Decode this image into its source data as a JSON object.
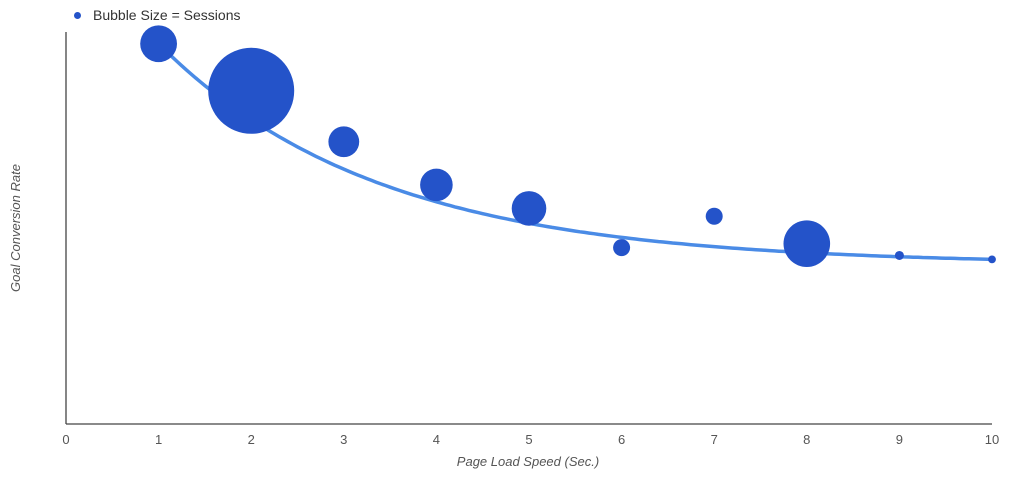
{
  "chart_data": {
    "type": "scatter",
    "subtype": "bubble",
    "legend": {
      "label": "Bubble Size = Sessions",
      "placement": "top-left"
    },
    "xlabel": "Page Load Speed (Sec.)",
    "ylabel": "Goal Conversion Rate",
    "xlim": [
      0,
      10
    ],
    "ylim": [
      0,
      1
    ],
    "x_ticks": [
      "0",
      "1",
      "2",
      "3",
      "4",
      "5",
      "6",
      "7",
      "8",
      "9",
      "10"
    ],
    "y_ticks_shown": false,
    "grid": false,
    "trendline": true,
    "bubble_color": "#2453c9",
    "trend_color": "#4a8be6",
    "axis_color": "#444444",
    "series": [
      {
        "name": "Bubble Size = Sessions",
        "x": [
          1,
          2,
          3,
          4,
          5,
          6,
          7,
          8,
          9,
          10
        ],
        "y": [
          0.97,
          0.85,
          0.72,
          0.61,
          0.55,
          0.45,
          0.53,
          0.46,
          0.43,
          0.42
        ],
        "size": [
          330,
          1800,
          230,
          260,
          290,
          70,
          70,
          530,
          20,
          15
        ]
      }
    ]
  }
}
